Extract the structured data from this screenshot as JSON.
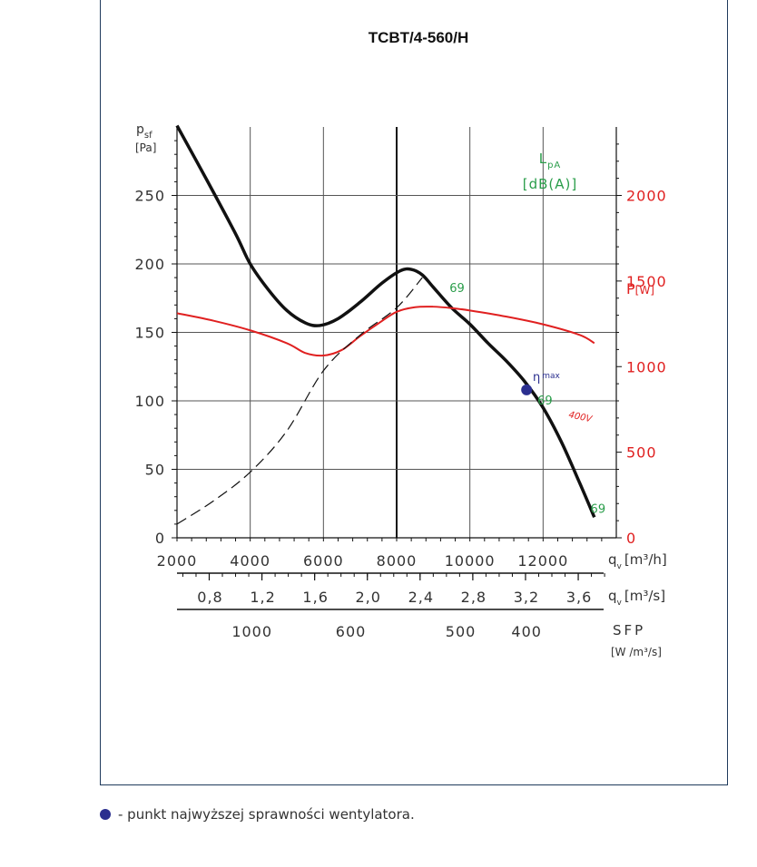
{
  "colors": {
    "pressure_curve": "#111111",
    "power_curve": "#e02020",
    "noise_labels": "#2a9d4a",
    "efficiency_point": "#2b2f8f",
    "frame": "#1f3a5c"
  },
  "legend": {
    "icon": "blue-dot-icon",
    "text": "- punkt najwyższej sprawności wentylatora."
  },
  "chart_data": {
    "type": "line",
    "title": "TCBT/4-560/H",
    "grid": true,
    "y_left": {
      "label": "p",
      "label_sub": "sf",
      "unit": "[Pa]",
      "range": [
        0,
        300
      ],
      "ticks": [
        "0",
        "50",
        "100",
        "150",
        "200",
        "250"
      ]
    },
    "y_right": {
      "label": "P",
      "unit": "[W]",
      "range": [
        0,
        2400
      ],
      "ticks": [
        "0",
        "500",
        "1000",
        "1500",
        "2000"
      ]
    },
    "x": {
      "range": [
        2000,
        14000
      ],
      "ticks": [
        "2000",
        "4000",
        "6000",
        "8000",
        "10000",
        "12000"
      ],
      "label": "q",
      "label_sub": "v",
      "unit": "[m³/h]"
    },
    "x2": {
      "label": "q",
      "label_sub": "v",
      "unit": "[m³/s]",
      "ticks": [
        "0,8",
        "1,2",
        "1,6",
        "2,0",
        "2,4",
        "2,8",
        "3,2",
        "3,6"
      ],
      "values": [
        0.8,
        1.2,
        1.6,
        2.0,
        2.4,
        2.8,
        3.2,
        3.6
      ]
    },
    "sfp": {
      "label": "SFP",
      "unit": "[W /m³/s]",
      "ticks": [
        "1000",
        "600",
        "500",
        "400"
      ],
      "at_q_m3h": [
        4050,
        6750,
        9750,
        11550
      ]
    },
    "noise": {
      "label": "L",
      "label_sub": "pA",
      "unit": "[dB(A)]",
      "points": [
        {
          "value": "69",
          "x": 9650,
          "y": 182
        },
        {
          "value": "69",
          "x": 12050,
          "y": 100
        },
        {
          "value": "69",
          "x": 13500,
          "y": 21
        }
      ]
    },
    "eta_max": {
      "label": "η",
      "label_sub": "max",
      "x": 11550,
      "y": 108
    },
    "series": [
      {
        "name": "",
        "axis": "left",
        "style": "solid-thick",
        "x": [
          2000,
          2800,
          3600,
          4000,
          4500,
          5000,
          5500,
          5900,
          6400,
          7000,
          7600,
          8100,
          8400,
          8700,
          9000,
          9500,
          10000,
          10500,
          11000,
          11500,
          12000,
          12500,
          13000,
          13400
        ],
        "y": [
          301,
          262,
          222,
          200,
          181,
          166,
          157,
          155,
          160,
          172,
          186,
          195,
          196,
          192,
          183,
          168,
          156,
          142,
          129,
          114,
          95,
          70,
          40,
          15
        ]
      },
      {
        "name": "400V",
        "axis": "right",
        "style": "solid-red",
        "x": [
          2000,
          3000,
          4000,
          5000,
          5500,
          6000,
          6500,
          7000,
          7500,
          8000,
          8500,
          9000,
          9500,
          10000,
          11000,
          12000,
          13000,
          13400
        ],
        "y": [
          1312,
          1268,
          1212,
          1137,
          1080,
          1065,
          1097,
          1178,
          1252,
          1320,
          1347,
          1350,
          1342,
          1328,
          1292,
          1247,
          1185,
          1137
        ]
      },
      {
        "name": "",
        "axis": "left",
        "style": "dashed",
        "x": [
          2000,
          3000,
          4000,
          5000,
          6000,
          7000,
          8000,
          8700
        ],
        "y": [
          10,
          27,
          48,
          78,
          122,
          148,
          168,
          190
        ]
      }
    ],
    "series_label_400V": "400V"
  }
}
